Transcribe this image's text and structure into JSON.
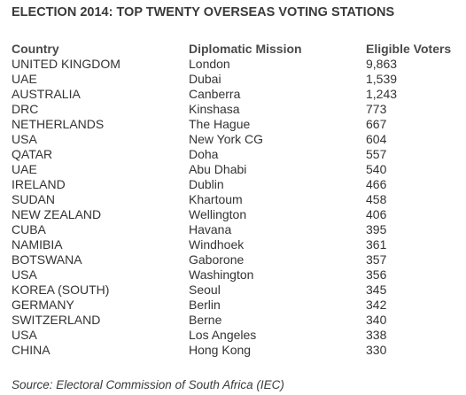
{
  "title": "ELECTION 2014: TOP TWENTY OVERSEAS VOTING STATIONS",
  "source": "Source: Electoral Commission of South Africa (IEC)",
  "chart_data": {
    "type": "table",
    "title": "ELECTION 2014: TOP TWENTY OVERSEAS VOTING STATIONS",
    "columns": [
      "Country",
      "Diplomatic Mission",
      "Eligible Voters"
    ],
    "rows": [
      [
        "UNITED KINGDOM",
        "London",
        "9,863"
      ],
      [
        "UAE",
        "Dubai",
        "1,539"
      ],
      [
        "AUSTRALIA",
        "Canberra",
        "1,243"
      ],
      [
        "DRC",
        "Kinshasa",
        "773"
      ],
      [
        "NETHERLANDS",
        "The Hague",
        "667"
      ],
      [
        "USA",
        "New York CG",
        "604"
      ],
      [
        "QATAR",
        "Doha",
        "557"
      ],
      [
        "UAE",
        "Abu Dhabi",
        "540"
      ],
      [
        "IRELAND",
        "Dublin",
        "466"
      ],
      [
        "SUDAN",
        "Khartoum",
        "458"
      ],
      [
        "NEW ZEALAND",
        "Wellington",
        "406"
      ],
      [
        "CUBA",
        "Havana",
        "395"
      ],
      [
        "NAMIBIA",
        "Windhoek",
        "361"
      ],
      [
        "BOTSWANA",
        "Gaborone",
        "357"
      ],
      [
        "USA",
        "Washington",
        "356"
      ],
      [
        "KOREA (SOUTH)",
        "Seoul",
        "345"
      ],
      [
        "GERMANY",
        "Berlin",
        "342"
      ],
      [
        "SWITZERLAND",
        "Berne",
        "340"
      ],
      [
        "USA",
        "Los Angeles",
        "338"
      ],
      [
        "CHINA",
        "Hong Kong",
        "330"
      ]
    ]
  }
}
